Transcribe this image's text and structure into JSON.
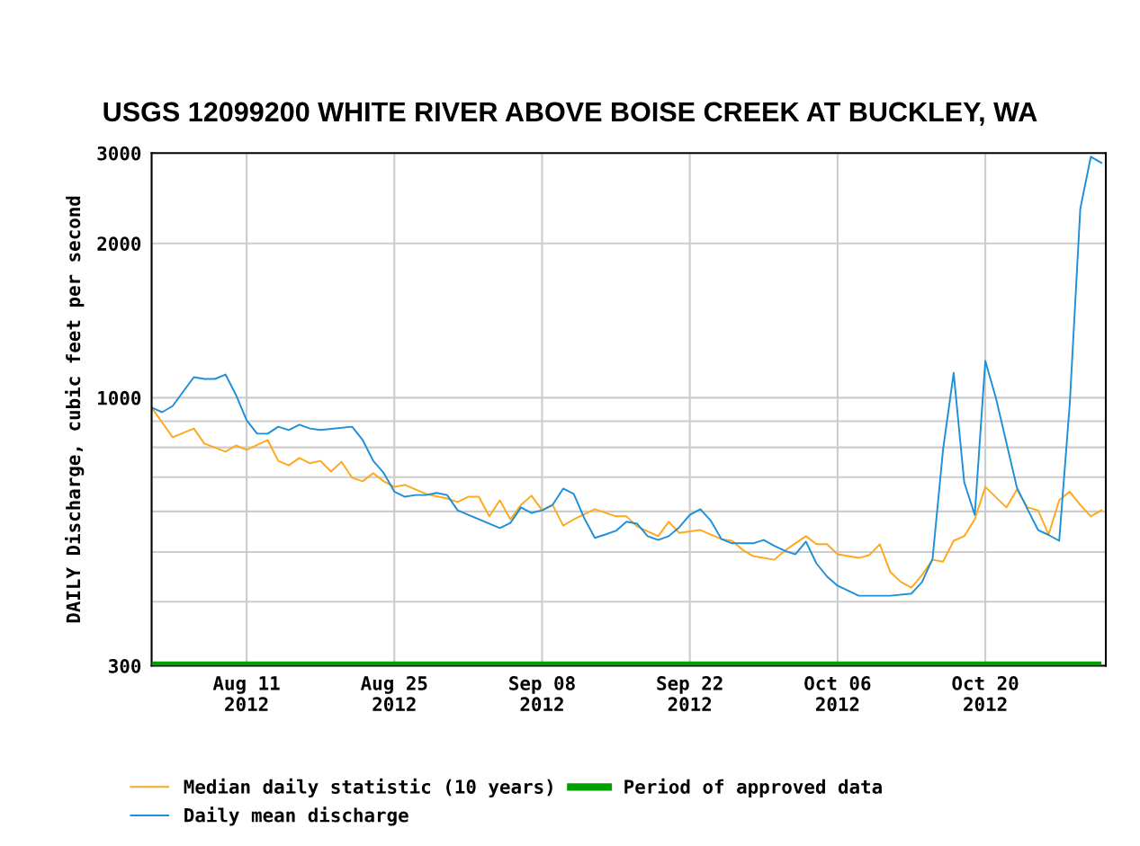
{
  "chart_data": {
    "type": "line",
    "title": "USGS 12099200 WHITE RIVER ABOVE BOISE CREEK AT BUCKLEY, WA",
    "ylabel": "DAILY Discharge, cubic feet per second",
    "log": "y",
    "ylim": [
      300,
      3000
    ],
    "yticks": [
      300,
      {
        "value": 400,
        "label": null
      },
      {
        "value": 500,
        "label": null
      },
      {
        "value": 600,
        "label": null
      },
      {
        "value": 700,
        "label": null
      },
      {
        "value": 800,
        "label": null
      },
      {
        "value": 900,
        "label": null
      },
      1000,
      2000,
      3000
    ],
    "xlim": [
      "2012-08-02",
      "2012-10-31T10:00"
    ],
    "xticks": [
      {
        "value": "2012-08-11",
        "label": "Aug 11\n2012"
      },
      {
        "value": "2012-08-25",
        "label": "Aug 25\n2012"
      },
      {
        "value": "2012-09-08",
        "label": "Sep 08\n2012"
      },
      {
        "value": "2012-09-22",
        "label": "Sep 22\n2012"
      },
      {
        "value": "2012-10-06",
        "label": "Oct 06\n2012"
      },
      {
        "value": "2012-10-20",
        "label": "Oct 20\n2012"
      }
    ],
    "grid": true,
    "legend": "bottom",
    "series": [
      {
        "name": "Median daily statistic (10 years)",
        "color": "#ffa81c",
        "x": [
          "2012-08-02",
          "2012-08-04",
          "2012-08-06",
          "2012-08-07",
          "2012-08-09",
          "2012-08-10",
          "2012-08-11",
          "2012-08-13",
          "2012-08-14",
          "2012-08-15",
          "2012-08-16",
          "2012-08-17",
          "2012-08-18",
          "2012-08-19",
          "2012-08-20",
          "2012-08-21",
          "2012-08-22",
          "2012-08-23",
          "2012-08-24",
          "2012-08-25",
          "2012-08-26",
          "2012-08-28",
          "2012-08-30",
          "2012-08-31",
          "2012-09-01",
          "2012-09-02",
          "2012-09-03",
          "2012-09-04",
          "2012-09-05",
          "2012-09-06",
          "2012-09-07",
          "2012-09-08",
          "2012-09-09",
          "2012-09-10",
          "2012-09-11",
          "2012-09-13",
          "2012-09-15",
          "2012-09-16",
          "2012-09-17",
          "2012-09-19",
          "2012-09-20",
          "2012-09-21",
          "2012-09-23",
          "2012-09-25",
          "2012-09-26",
          "2012-09-27",
          "2012-09-28",
          "2012-09-30",
          "2012-10-01",
          "2012-10-02",
          "2012-10-03",
          "2012-10-04",
          "2012-10-05",
          "2012-10-06",
          "2012-10-08",
          "2012-10-09",
          "2012-10-10",
          "2012-10-11",
          "2012-10-12",
          "2012-10-13",
          "2012-10-14",
          "2012-10-15",
          "2012-10-16",
          "2012-10-17",
          "2012-10-18",
          "2012-10-19",
          "2012-10-20",
          "2012-10-22",
          "2012-10-23",
          "2012-10-24",
          "2012-10-25",
          "2012-10-26",
          "2012-10-27",
          "2012-10-28",
          "2012-10-29",
          "2012-10-30",
          "2012-10-31"
        ],
        "values": [
          957,
          837,
          871,
          814,
          785,
          807,
          791,
          827,
          753,
          738,
          763,
          745,
          753,
          718,
          750,
          698,
          687,
          713,
          687,
          670,
          676,
          649,
          636,
          626,
          641,
          641,
          587,
          631,
          579,
          618,
          644,
          603,
          618,
          563,
          579,
          606,
          587,
          587,
          561,
          537,
          573,
          545,
          552,
          530,
          526,
          505,
          491,
          483,
          503,
          520,
          537,
          518,
          518,
          495,
          487,
          493,
          518,
          457,
          437,
          426,
          451,
          483,
          479,
          526,
          537,
          579,
          670,
          611,
          662,
          611,
          603,
          541,
          631,
          656,
          618,
          587,
          603
        ]
      },
      {
        "name": "Daily mean discharge",
        "color": "#1e8fd8",
        "x": [
          "2012-08-02",
          "2012-08-03",
          "2012-08-04",
          "2012-08-06",
          "2012-08-07",
          "2012-08-08",
          "2012-08-09",
          "2012-08-10",
          "2012-08-11",
          "2012-08-12",
          "2012-08-13",
          "2012-08-14",
          "2012-08-15",
          "2012-08-16",
          "2012-08-17",
          "2012-08-18",
          "2012-08-21",
          "2012-08-22",
          "2012-08-23",
          "2012-08-24",
          "2012-08-25",
          "2012-08-26",
          "2012-08-27",
          "2012-08-28",
          "2012-08-29",
          "2012-08-30",
          "2012-08-31",
          "2012-09-01",
          "2012-09-04",
          "2012-09-05",
          "2012-09-06",
          "2012-09-07",
          "2012-09-08",
          "2012-09-09",
          "2012-09-10",
          "2012-09-11",
          "2012-09-12",
          "2012-09-13",
          "2012-09-14",
          "2012-09-15",
          "2012-09-16",
          "2012-09-17",
          "2012-09-18",
          "2012-09-19",
          "2012-09-20",
          "2012-09-21",
          "2012-09-22",
          "2012-09-23",
          "2012-09-24",
          "2012-09-25",
          "2012-09-26",
          "2012-09-28",
          "2012-09-29",
          "2012-09-30",
          "2012-10-01",
          "2012-10-02",
          "2012-10-03",
          "2012-10-04",
          "2012-10-05",
          "2012-10-06",
          "2012-10-08",
          "2012-10-11",
          "2012-10-13",
          "2012-10-14",
          "2012-10-15",
          "2012-10-16",
          "2012-10-17",
          "2012-10-18",
          "2012-10-19",
          "2012-10-20",
          "2012-10-21",
          "2012-10-22",
          "2012-10-23",
          "2012-10-24",
          "2012-10-25",
          "2012-10-26",
          "2012-10-27",
          "2012-10-28",
          "2012-10-29",
          "2012-10-30",
          "2012-10-31"
        ],
        "values": [
          957,
          937,
          964,
          1097,
          1088,
          1088,
          1110,
          1012,
          904,
          851,
          851,
          878,
          865,
          886,
          871,
          865,
          878,
          827,
          753,
          713,
          656,
          641,
          646,
          646,
          652,
          646,
          603,
          591,
          557,
          570,
          611,
          596,
          603,
          618,
          665,
          649,
          582,
          533,
          541,
          550,
          573,
          568,
          537,
          528,
          537,
          559,
          591,
          606,
          575,
          530,
          520,
          520,
          528,
          514,
          503,
          495,
          524,
          475,
          448,
          430,
          411,
          411,
          415,
          437,
          485,
          794,
          1118,
          684,
          591,
          1180,
          1000,
          817,
          667,
          606,
          552,
          540,
          526,
          972,
          2337,
          2952,
          2871
        ]
      },
      {
        "name": "Period of approved data",
        "type": "area",
        "color": "#00a000",
        "x": [
          "2012-08-02",
          "2012-10-31"
        ],
        "values": [
          306,
          306
        ]
      }
    ]
  }
}
